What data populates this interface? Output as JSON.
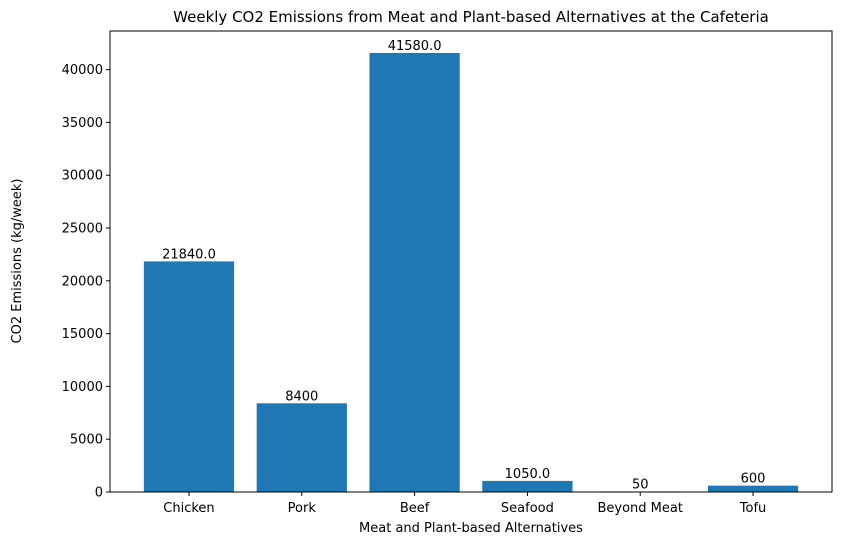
{
  "chart_data": {
    "type": "bar",
    "title": "Weekly CO2 Emissions from Meat and Plant-based Alternatives at the Cafeteria",
    "xlabel": "Meat and Plant-based Alternatives",
    "ylabel": "CO2 Emissions (kg/week)",
    "categories": [
      "Chicken",
      "Pork",
      "Beef",
      "Seafood",
      "Beyond Meat",
      "Tofu"
    ],
    "values": [
      21840.0,
      8400,
      41580.0,
      1050.0,
      50,
      600
    ],
    "value_labels": [
      "21840.0",
      "8400",
      "41580.0",
      "1050.0",
      "50",
      "600"
    ],
    "ylim": [
      0,
      43659
    ],
    "yticks": [
      0,
      5000,
      10000,
      15000,
      20000,
      25000,
      30000,
      35000,
      40000
    ],
    "grid": false,
    "bar_color": "#1f77b4"
  }
}
